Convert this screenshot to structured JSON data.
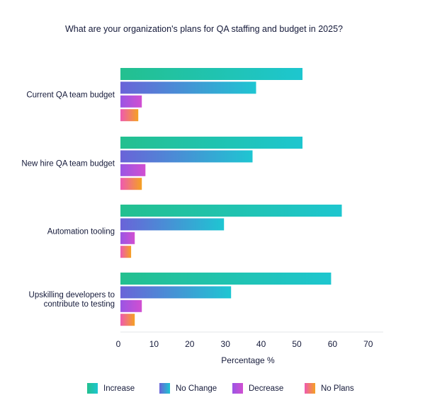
{
  "chart_data": {
    "type": "bar",
    "orientation": "horizontal",
    "title": "What are your organization's plans for QA staffing and budget in 2025?",
    "xlabel": "Percentage %",
    "ylabel": "",
    "xlim": [
      0,
      73
    ],
    "xticks": [
      0,
      10,
      20,
      30,
      40,
      50,
      60,
      70
    ],
    "categories": [
      [
        "Current QA team budget"
      ],
      [
        "New hire QA team budget"
      ],
      [
        "Automation tooling"
      ],
      [
        "Upskilling developers to",
        "contribute to testing"
      ]
    ],
    "series": [
      {
        "name": "Increase",
        "values": [
          51,
          51,
          62,
          59
        ],
        "colors": [
          "#23c08f",
          "#1ec6cf"
        ]
      },
      {
        "name": "No Change",
        "values": [
          38,
          37,
          29,
          31
        ],
        "colors": [
          "#6a63d8",
          "#1ec6d2"
        ]
      },
      {
        "name": "Decrease",
        "values": [
          6,
          7,
          4,
          6
        ],
        "colors": [
          "#9a55e4",
          "#d14fd1"
        ]
      },
      {
        "name": "No Plans",
        "values": [
          5,
          6,
          3,
          4
        ],
        "colors": [
          "#ee5ab1",
          "#f5a122"
        ]
      }
    ],
    "grid": false,
    "legend_position": "bottom"
  }
}
